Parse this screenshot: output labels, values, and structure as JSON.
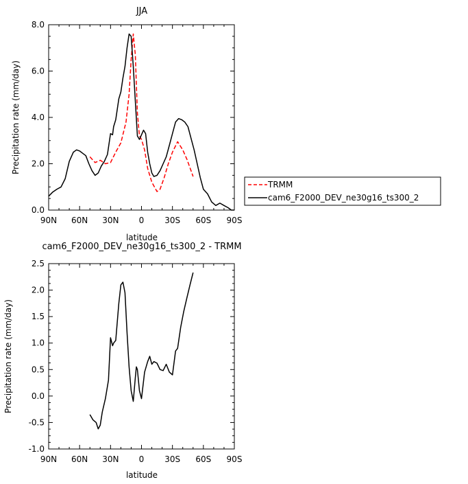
{
  "chart_data": [
    {
      "type": "line",
      "title": "JJA",
      "xlabel": "latitude",
      "ylabel": "Precipitation rate (mm/day)",
      "xlim": [
        90,
        -90
      ],
      "ylim": [
        0,
        8
      ],
      "x_ticks": [
        90,
        60,
        30,
        0,
        -30,
        -60,
        -90
      ],
      "x_tick_labels": [
        "90N",
        "60N",
        "30N",
        "0",
        "30S",
        "60S",
        "90S"
      ],
      "y_ticks": [
        0,
        2,
        4,
        6,
        8
      ],
      "y_tick_labels": [
        "0.0",
        "2.0",
        "4.0",
        "6.0",
        "8.0"
      ],
      "grid": false,
      "legend_position": "right-outside",
      "series": [
        {
          "name": "TRMM",
          "color": "#ff0000",
          "dash": "dashed",
          "x": [
            50,
            45,
            40,
            35,
            30,
            25,
            20,
            15,
            12,
            10,
            8,
            6,
            4,
            2,
            0,
            -3,
            -6,
            -10,
            -15,
            -18,
            -22,
            -26,
            -30,
            -35,
            -40,
            -44,
            -48,
            -50
          ],
          "y": [
            2.3,
            2.05,
            2.15,
            2.0,
            2.05,
            2.5,
            2.9,
            3.8,
            5.0,
            6.5,
            7.6,
            6.7,
            4.2,
            3.2,
            3.05,
            2.6,
            1.8,
            1.2,
            0.8,
            0.9,
            1.4,
            2.0,
            2.5,
            2.95,
            2.6,
            2.2,
            1.7,
            1.45
          ]
        },
        {
          "name": "cam6_F2000_DEV_ne30g16_ts300_2",
          "color": "#000000",
          "dash": "solid",
          "x": [
            90,
            86,
            82,
            78,
            74,
            70,
            66,
            63,
            60,
            57,
            54,
            51,
            48,
            45,
            42,
            39,
            36,
            33,
            30,
            28,
            27,
            25,
            22,
            20,
            18,
            16,
            14,
            12,
            10,
            8,
            6,
            4,
            2,
            0,
            -2,
            -4,
            -6,
            -8,
            -10,
            -12,
            -15,
            -18,
            -21,
            -24,
            -27,
            -30,
            -33,
            -36,
            -39,
            -42,
            -45,
            -48,
            -51,
            -54,
            -57,
            -60,
            -64,
            -68,
            -72,
            -76,
            -80,
            -84,
            -87,
            -90
          ],
          "y": [
            0.6,
            0.78,
            0.9,
            1.0,
            1.35,
            2.1,
            2.5,
            2.6,
            2.55,
            2.45,
            2.35,
            2.0,
            1.7,
            1.5,
            1.6,
            1.9,
            2.1,
            2.4,
            3.3,
            3.25,
            3.6,
            3.9,
            4.8,
            5.1,
            5.7,
            6.2,
            7.0,
            7.6,
            7.5,
            6.2,
            4.7,
            3.2,
            3.05,
            3.25,
            3.45,
            3.3,
            2.5,
            2.0,
            1.6,
            1.45,
            1.5,
            1.7,
            2.0,
            2.3,
            2.8,
            3.3,
            3.8,
            3.95,
            3.9,
            3.8,
            3.6,
            3.1,
            2.6,
            2.0,
            1.4,
            0.9,
            0.7,
            0.35,
            0.2,
            0.3,
            0.2,
            0.1,
            0.0,
            0.0
          ]
        }
      ]
    },
    {
      "type": "line",
      "title": "cam6_F2000_DEV_ne30g16_ts300_2 - TRMM",
      "xlabel": "latitude",
      "ylabel": "Precipitation rate (mm/day)",
      "xlim": [
        90,
        -90
      ],
      "ylim": [
        -1,
        2.5
      ],
      "x_ticks": [
        90,
        60,
        30,
        0,
        -30,
        -60,
        -90
      ],
      "x_tick_labels": [
        "90N",
        "60N",
        "30N",
        "0",
        "30S",
        "60S",
        "90S"
      ],
      "y_ticks": [
        -1,
        -0.5,
        0,
        0.5,
        1,
        1.5,
        2,
        2.5
      ],
      "y_tick_labels": [
        "-1.0",
        "-0.5",
        "0.0",
        "0.5",
        "1.0",
        "1.5",
        "2.0",
        "2.5"
      ],
      "grid": false,
      "series": [
        {
          "color": "#000000",
          "dash": "solid",
          "x": [
            50,
            47,
            44,
            42,
            40,
            38,
            35,
            32,
            30,
            28,
            27,
            25,
            22,
            20,
            18,
            16,
            14,
            12,
            10,
            8,
            6,
            5,
            4,
            2,
            0,
            -3,
            -6,
            -8,
            -10,
            -12,
            -15,
            -18,
            -21,
            -24,
            -27,
            -30,
            -33,
            -35,
            -38,
            -41,
            -44,
            -47,
            -50
          ],
          "y": [
            -0.35,
            -0.45,
            -0.5,
            -0.62,
            -0.55,
            -0.3,
            -0.05,
            0.3,
            1.1,
            0.95,
            1.0,
            1.05,
            1.75,
            2.1,
            2.15,
            1.95,
            1.2,
            0.55,
            0.1,
            -0.1,
            0.35,
            0.55,
            0.5,
            0.1,
            -0.05,
            0.45,
            0.65,
            0.75,
            0.6,
            0.65,
            0.62,
            0.5,
            0.48,
            0.6,
            0.45,
            0.4,
            0.85,
            0.9,
            1.3,
            1.6,
            1.85,
            2.1,
            2.33
          ]
        }
      ]
    }
  ]
}
